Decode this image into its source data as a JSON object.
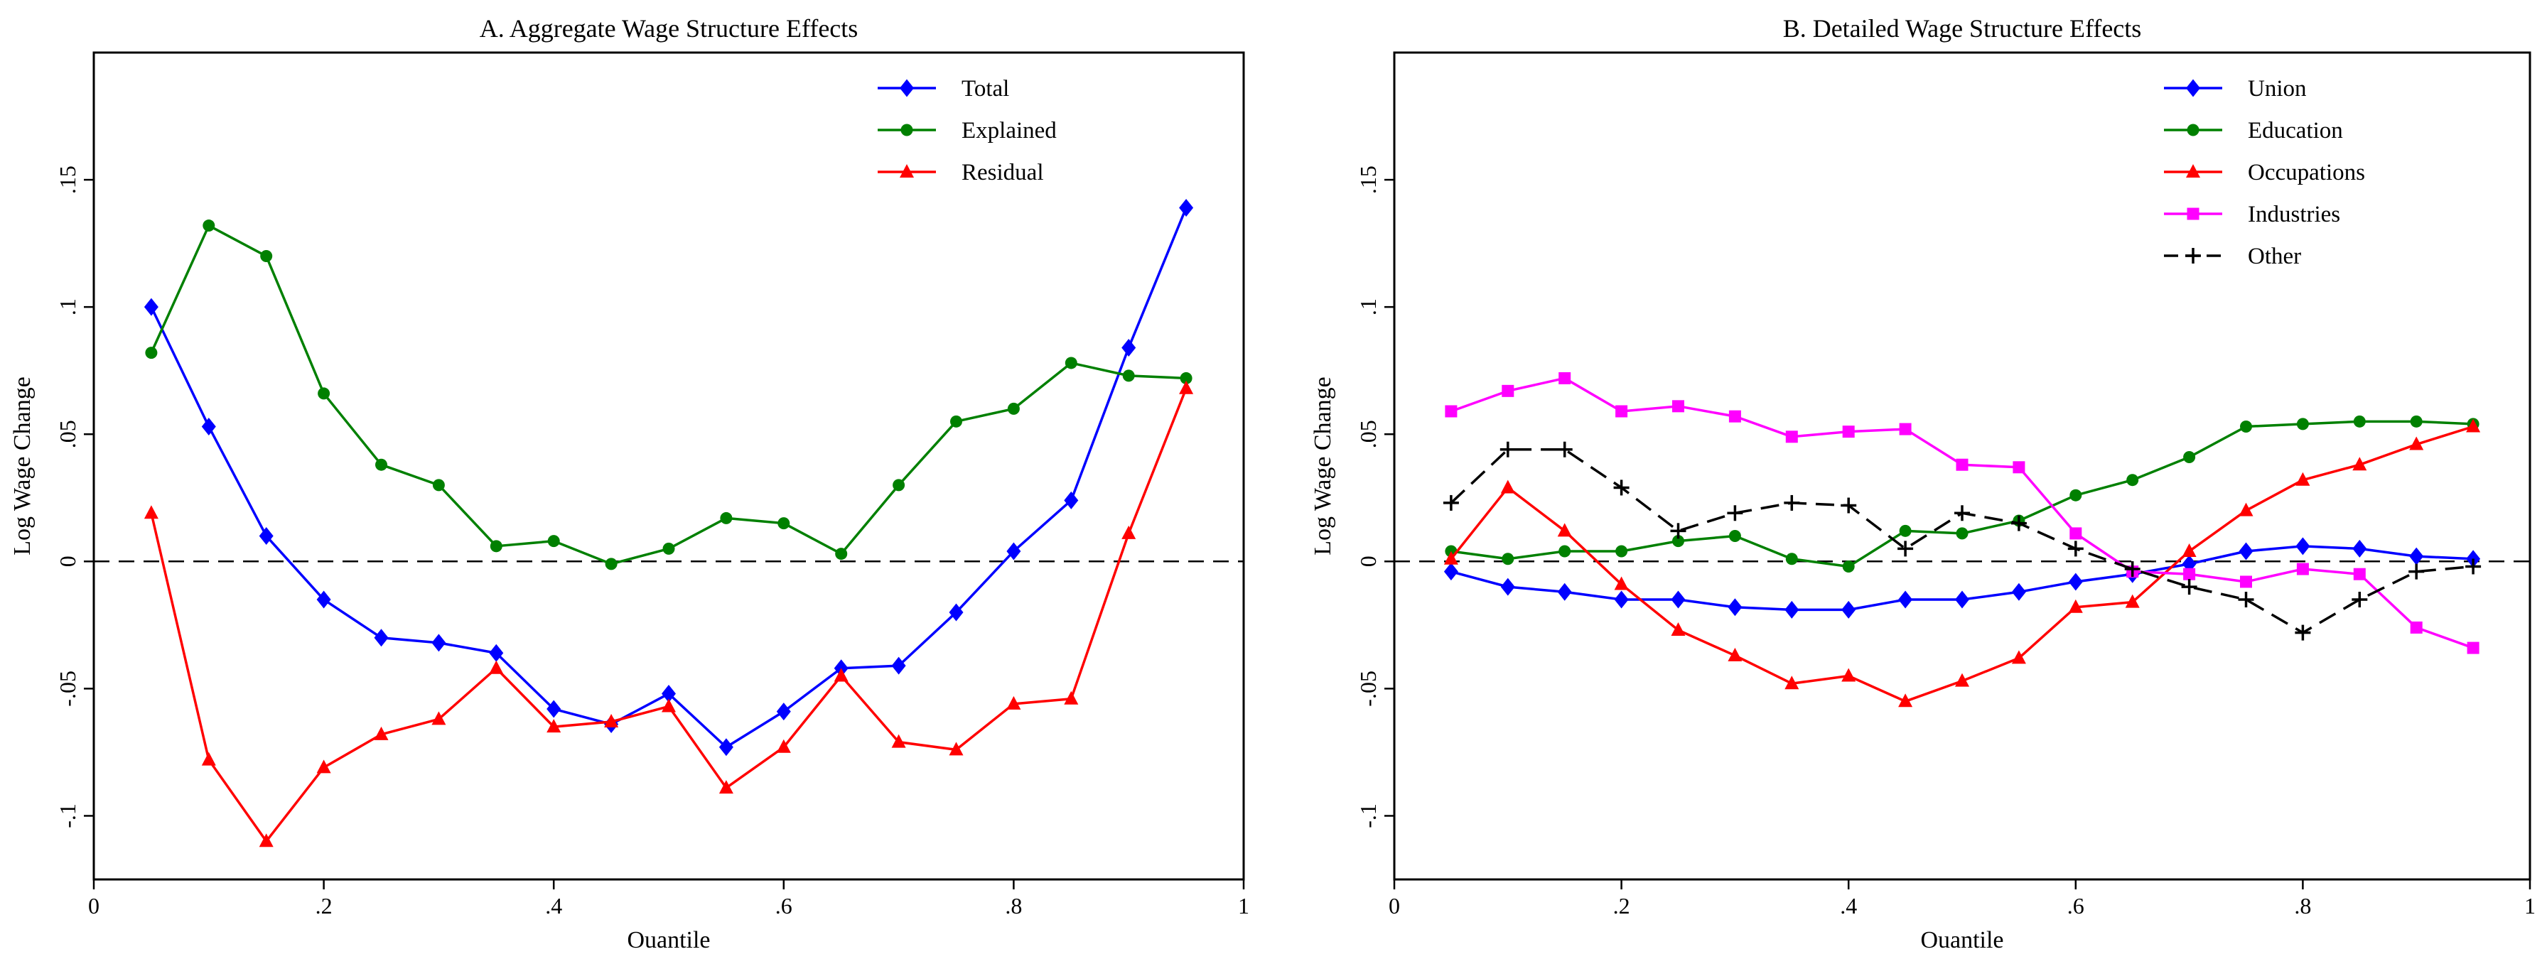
{
  "chart_data": [
    {
      "type": "line",
      "title": "A. Aggregate Wage Structure Effects",
      "xlabel": "Ouantile",
      "ylabel": "Log Wage Change",
      "xlim": [
        0,
        1
      ],
      "ylim": [
        -0.125,
        0.2
      ],
      "xticks": [
        {
          "v": 0,
          "label": "0"
        },
        {
          "v": 0.2,
          "label": ".2"
        },
        {
          "v": 0.4,
          "label": ".4"
        },
        {
          "v": 0.6,
          "label": ".6"
        },
        {
          "v": 0.8,
          "label": ".8"
        },
        {
          "v": 1,
          "label": "1"
        }
      ],
      "yticks": [
        {
          "v": -0.1,
          "label": "-.1"
        },
        {
          "v": -0.05,
          "label": "-.05"
        },
        {
          "v": 0,
          "label": "0"
        },
        {
          "v": 0.05,
          "label": ".05"
        },
        {
          "v": 0.1,
          "label": ".1"
        },
        {
          "v": 0.15,
          "label": ".15"
        }
      ],
      "reference_line": 0,
      "legend_position": "top-right",
      "x": [
        0.05,
        0.1,
        0.15,
        0.2,
        0.25,
        0.3,
        0.35,
        0.4,
        0.45,
        0.5,
        0.55,
        0.6,
        0.65,
        0.7,
        0.75,
        0.8,
        0.85,
        0.9,
        0.95
      ],
      "series": [
        {
          "name": "Total",
          "color": "#0000ff",
          "marker": "diamond",
          "dash": "solid",
          "values": [
            0.1,
            0.053,
            0.01,
            -0.015,
            -0.03,
            -0.032,
            -0.036,
            -0.058,
            -0.064,
            -0.052,
            -0.073,
            -0.059,
            -0.042,
            -0.041,
            -0.02,
            0.004,
            0.024,
            0.084,
            0.139
          ]
        },
        {
          "name": "Explained",
          "color": "#008000",
          "marker": "circle",
          "dash": "solid",
          "values": [
            0.082,
            0.132,
            0.12,
            0.066,
            0.038,
            0.03,
            0.006,
            0.008,
            -0.001,
            0.005,
            0.017,
            0.015,
            0.003,
            0.03,
            0.055,
            0.06,
            0.078,
            0.073,
            0.072
          ]
        },
        {
          "name": "Residual",
          "color": "#ff0000",
          "marker": "triangle",
          "dash": "solid",
          "values": [
            0.019,
            -0.078,
            -0.11,
            -0.081,
            -0.068,
            -0.062,
            -0.042,
            -0.065,
            -0.063,
            -0.057,
            -0.089,
            -0.073,
            -0.045,
            -0.071,
            -0.074,
            -0.056,
            -0.054,
            0.011,
            0.068
          ]
        }
      ]
    },
    {
      "type": "line",
      "title": "B. Detailed Wage Structure Effects",
      "xlabel": "Ouantile",
      "ylabel": "Log Wage Change",
      "xlim": [
        0,
        1
      ],
      "ylim": [
        -0.125,
        0.2
      ],
      "xticks": [
        {
          "v": 0,
          "label": "0"
        },
        {
          "v": 0.2,
          "label": ".2"
        },
        {
          "v": 0.4,
          "label": ".4"
        },
        {
          "v": 0.6,
          "label": ".6"
        },
        {
          "v": 0.8,
          "label": ".8"
        },
        {
          "v": 1,
          "label": "1"
        }
      ],
      "yticks": [
        {
          "v": -0.1,
          "label": "-.1"
        },
        {
          "v": -0.05,
          "label": "-.05"
        },
        {
          "v": 0,
          "label": "0"
        },
        {
          "v": 0.05,
          "label": ".05"
        },
        {
          "v": 0.1,
          "label": ".1"
        },
        {
          "v": 0.15,
          "label": ".15"
        }
      ],
      "reference_line": 0,
      "legend_position": "top-right",
      "x": [
        0.05,
        0.1,
        0.15,
        0.2,
        0.25,
        0.3,
        0.35,
        0.4,
        0.45,
        0.5,
        0.55,
        0.6,
        0.65,
        0.7,
        0.75,
        0.8,
        0.85,
        0.9,
        0.95
      ],
      "series": [
        {
          "name": "Union",
          "color": "#0000ff",
          "marker": "diamond",
          "dash": "solid",
          "values": [
            -0.004,
            -0.01,
            -0.012,
            -0.015,
            -0.015,
            -0.018,
            -0.019,
            -0.019,
            -0.015,
            -0.015,
            -0.012,
            -0.008,
            -0.005,
            -0.001,
            0.004,
            0.006,
            0.005,
            0.002,
            0.001
          ]
        },
        {
          "name": "Education",
          "color": "#008000",
          "marker": "circle",
          "dash": "solid",
          "values": [
            0.004,
            0.001,
            0.004,
            0.004,
            0.008,
            0.01,
            0.001,
            -0.002,
            0.012,
            0.011,
            0.016,
            0.026,
            0.032,
            0.041,
            0.053,
            0.054,
            0.055,
            0.055,
            0.054
          ]
        },
        {
          "name": "Occupations",
          "color": "#ff0000",
          "marker": "triangle",
          "dash": "solid",
          "values": [
            0.001,
            0.029,
            0.012,
            -0.009,
            -0.027,
            -0.037,
            -0.048,
            -0.045,
            -0.055,
            -0.047,
            -0.038,
            -0.018,
            -0.016,
            0.004,
            0.02,
            0.032,
            0.038,
            0.046,
            0.053
          ]
        },
        {
          "name": "Industries",
          "color": "#ff00ff",
          "marker": "square",
          "dash": "solid",
          "values": [
            0.059,
            0.067,
            0.072,
            0.059,
            0.061,
            0.057,
            0.049,
            0.051,
            0.052,
            0.038,
            0.037,
            0.011,
            -0.004,
            -0.005,
            -0.008,
            -0.003,
            -0.005,
            -0.026,
            -0.034
          ]
        },
        {
          "name": "Other",
          "color": "#000000",
          "marker": "plus",
          "dash": "dashed",
          "values": [
            0.023,
            0.044,
            0.044,
            0.029,
            0.012,
            0.019,
            0.023,
            0.022,
            0.005,
            0.019,
            0.015,
            0.005,
            -0.003,
            -0.01,
            -0.015,
            -0.028,
            -0.015,
            -0.004,
            -0.002
          ]
        }
      ]
    }
  ]
}
